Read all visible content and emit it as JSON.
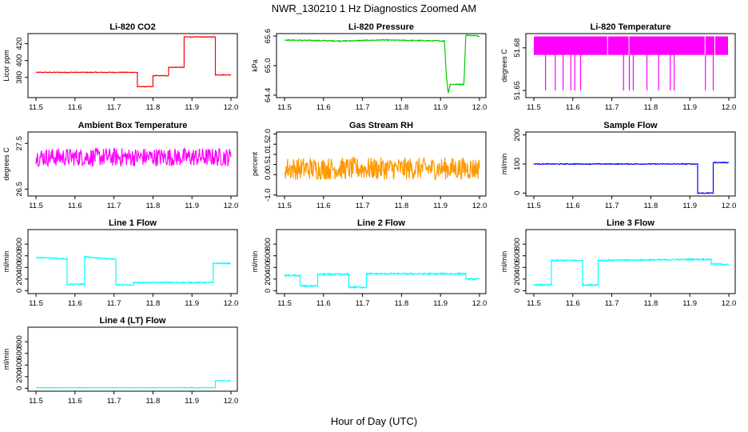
{
  "figure": {
    "title": "NWR_130210  1 Hz Diagnostics Zoomed AM",
    "xlabel": "Hour of Day (UTC)"
  },
  "chart_data": [
    {
      "type": "line",
      "title": "Li-820 CO2",
      "ylabel": "Licor ppm",
      "color": "#ff0000",
      "xlim": [
        11.5,
        12.0
      ],
      "ylim": [
        356,
        432
      ],
      "yticks": [
        "380",
        "400",
        "420"
      ],
      "x": [
        11.5,
        11.76,
        11.76,
        11.8,
        11.8,
        11.84,
        11.84,
        11.88,
        11.88,
        11.96,
        11.96,
        12.0
      ],
      "y": [
        386,
        386,
        369,
        369,
        382,
        382,
        392,
        392,
        428,
        428,
        383,
        383
      ],
      "noise": 0.4
    },
    {
      "type": "line",
      "title": "Li-820 Pressure",
      "ylabel": "kPa",
      "color": "#00cc00",
      "xlim": [
        11.5,
        12.0
      ],
      "ylim": [
        64.35,
        65.65
      ],
      "yticks": [
        "64.4",
        "65.0",
        "65.6"
      ],
      "x": [
        11.5,
        11.65,
        11.75,
        11.91,
        11.915,
        11.92,
        11.925,
        11.955,
        11.96,
        11.965,
        12.0
      ],
      "y": [
        65.52,
        65.5,
        65.52,
        65.5,
        64.8,
        64.45,
        64.62,
        64.62,
        64.62,
        65.62,
        65.6
      ],
      "noise": 0.01
    },
    {
      "type": "line",
      "title": "Li-820 Temperature",
      "ylabel": "degrees C",
      "color": "#ff00ff",
      "xlim": [
        11.5,
        12.0
      ],
      "ylim": [
        51.645,
        51.69
      ],
      "yticks": [
        "51.65",
        "51.68"
      ],
      "x": [
        11.5,
        12.0
      ],
      "y": [
        51.675,
        51.675
      ],
      "band": [
        51.675,
        51.688
      ],
      "spikes": [
        11.53,
        11.555,
        11.575,
        11.595,
        11.605,
        11.62,
        11.73,
        11.745,
        11.755,
        11.79,
        11.82,
        11.85,
        11.86,
        11.94,
        11.96
      ],
      "spike_to": 51.65,
      "gaps": [
        11.69,
        11.745,
        11.94,
        11.965
      ],
      "noise": 0
    },
    {
      "type": "line",
      "title": "Ambient Box Temperature",
      "ylabel": "degrees C",
      "color": "#ff00ff",
      "xlim": [
        11.5,
        12.0
      ],
      "ylim": [
        26.35,
        27.75
      ],
      "yticks": [
        "26.5",
        "27.5"
      ],
      "x": [
        11.5,
        12.0
      ],
      "y": [
        27.2,
        27.2
      ],
      "noise": 0.2
    },
    {
      "type": "line",
      "title": "Gas Stream RH",
      "ylabel": "percent",
      "color": "#ff9900",
      "xlim": [
        11.5,
        12.0
      ],
      "ylim": [
        -1.05,
        2.1
      ],
      "yticks": [
        "-1.0",
        "0.0",
        "0.5",
        "1.0",
        "1.5",
        "2.0"
      ],
      "x": [
        11.5,
        12.0
      ],
      "y": [
        0.3,
        0.3
      ],
      "noise": 0.55
    },
    {
      "type": "line",
      "title": "Sample Flow",
      "ylabel": "ml/min",
      "color": "#0000ff",
      "xlim": [
        11.5,
        12.0
      ],
      "ylim": [
        -10,
        210
      ],
      "yticks": [
        "0",
        "100",
        "200"
      ],
      "x": [
        11.5,
        11.92,
        11.92,
        11.96,
        11.96,
        12.0
      ],
      "y": [
        100,
        100,
        0,
        0,
        105,
        105
      ],
      "noise": 1.5
    },
    {
      "type": "line",
      "title": "Line 1 Flow",
      "ylabel": "ml/min",
      "color": "#00ffff",
      "xlim": [
        11.5,
        12.0
      ],
      "ylim": [
        -50,
        1050
      ],
      "yticks": [
        "0",
        "200",
        "400",
        "600",
        "800"
      ],
      "x": [
        11.5,
        11.58,
        11.58,
        11.625,
        11.625,
        11.705,
        11.705,
        11.75,
        11.75,
        11.955,
        11.955,
        12.0
      ],
      "y": [
        570,
        550,
        110,
        110,
        580,
        540,
        100,
        100,
        140,
        140,
        470,
        470
      ],
      "noise": 10
    },
    {
      "type": "line",
      "title": "Line 2 Flow",
      "ylabel": "ml/min",
      "color": "#00ffff",
      "xlim": [
        11.5,
        12.0
      ],
      "ylim": [
        -50,
        1050
      ],
      "yticks": [
        "0",
        "200",
        "400",
        "600",
        "800"
      ],
      "x": [
        11.5,
        11.54,
        11.54,
        11.585,
        11.585,
        11.665,
        11.665,
        11.71,
        11.71,
        11.965,
        11.965,
        12.0
      ],
      "y": [
        260,
        260,
        80,
        80,
        280,
        280,
        60,
        60,
        290,
        290,
        200,
        200
      ],
      "noise": 14
    },
    {
      "type": "line",
      "title": "Line 3 Flow",
      "ylabel": "ml/min",
      "color": "#00ffff",
      "xlim": [
        11.5,
        12.0
      ],
      "ylim": [
        -50,
        1050
      ],
      "yticks": [
        "0",
        "200",
        "400",
        "600",
        "800"
      ],
      "x": [
        11.5,
        11.545,
        11.545,
        11.625,
        11.625,
        11.665,
        11.665,
        11.955,
        11.955,
        12.0
      ],
      "y": [
        100,
        100,
        520,
        520,
        100,
        100,
        520,
        540,
        460,
        450
      ],
      "noise": 12
    },
    {
      "type": "line",
      "title": "Line 4 (LT) Flow",
      "ylabel": "ml/min",
      "color": "#00ffff",
      "xlim": [
        11.5,
        12.0
      ],
      "ylim": [
        -50,
        1050
      ],
      "yticks": [
        "0",
        "200",
        "400",
        "600",
        "800"
      ],
      "x": [
        11.5,
        11.96,
        11.96,
        12.0
      ],
      "y": [
        10,
        10,
        130,
        130
      ],
      "noise": 3
    }
  ],
  "xticks": [
    "11.5",
    "11.6",
    "11.7",
    "11.8",
    "11.9",
    "12.0"
  ]
}
